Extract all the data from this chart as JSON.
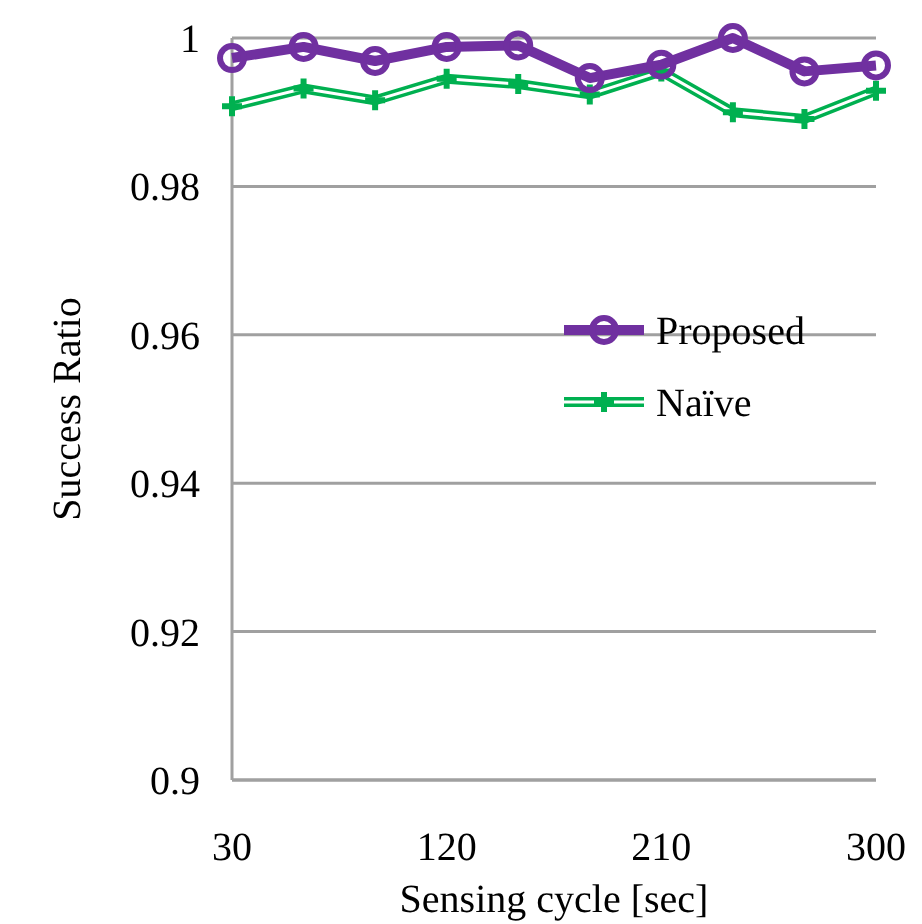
{
  "chart_data": {
    "type": "line",
    "xlabel": "Sensing cycle [sec]",
    "ylabel": "Success Ratio",
    "x": [
      30,
      60,
      90,
      120,
      150,
      180,
      210,
      240,
      270,
      300
    ],
    "xlim": [
      30,
      300
    ],
    "xticks": [
      30,
      120,
      210,
      300
    ],
    "ylim": [
      0.9,
      1
    ],
    "yticks": [
      0.9,
      0.92,
      0.94,
      0.96,
      0.98,
      1
    ],
    "grid": "y",
    "legend": "right",
    "series": [
      {
        "name": "Proposed",
        "color": "#7030a0",
        "marker": "circle",
        "values": [
          0.9973,
          0.9988,
          0.9969,
          0.9988,
          0.999,
          0.9946,
          0.9964,
          1.0,
          0.9955,
          0.9963
        ]
      },
      {
        "name": "Naïve",
        "color": "#00b050",
        "marker": "cross",
        "values": [
          0.9908,
          0.9932,
          0.9916,
          0.9945,
          0.9938,
          0.9924,
          0.9955,
          0.99,
          0.9891,
          0.9929
        ]
      }
    ]
  }
}
